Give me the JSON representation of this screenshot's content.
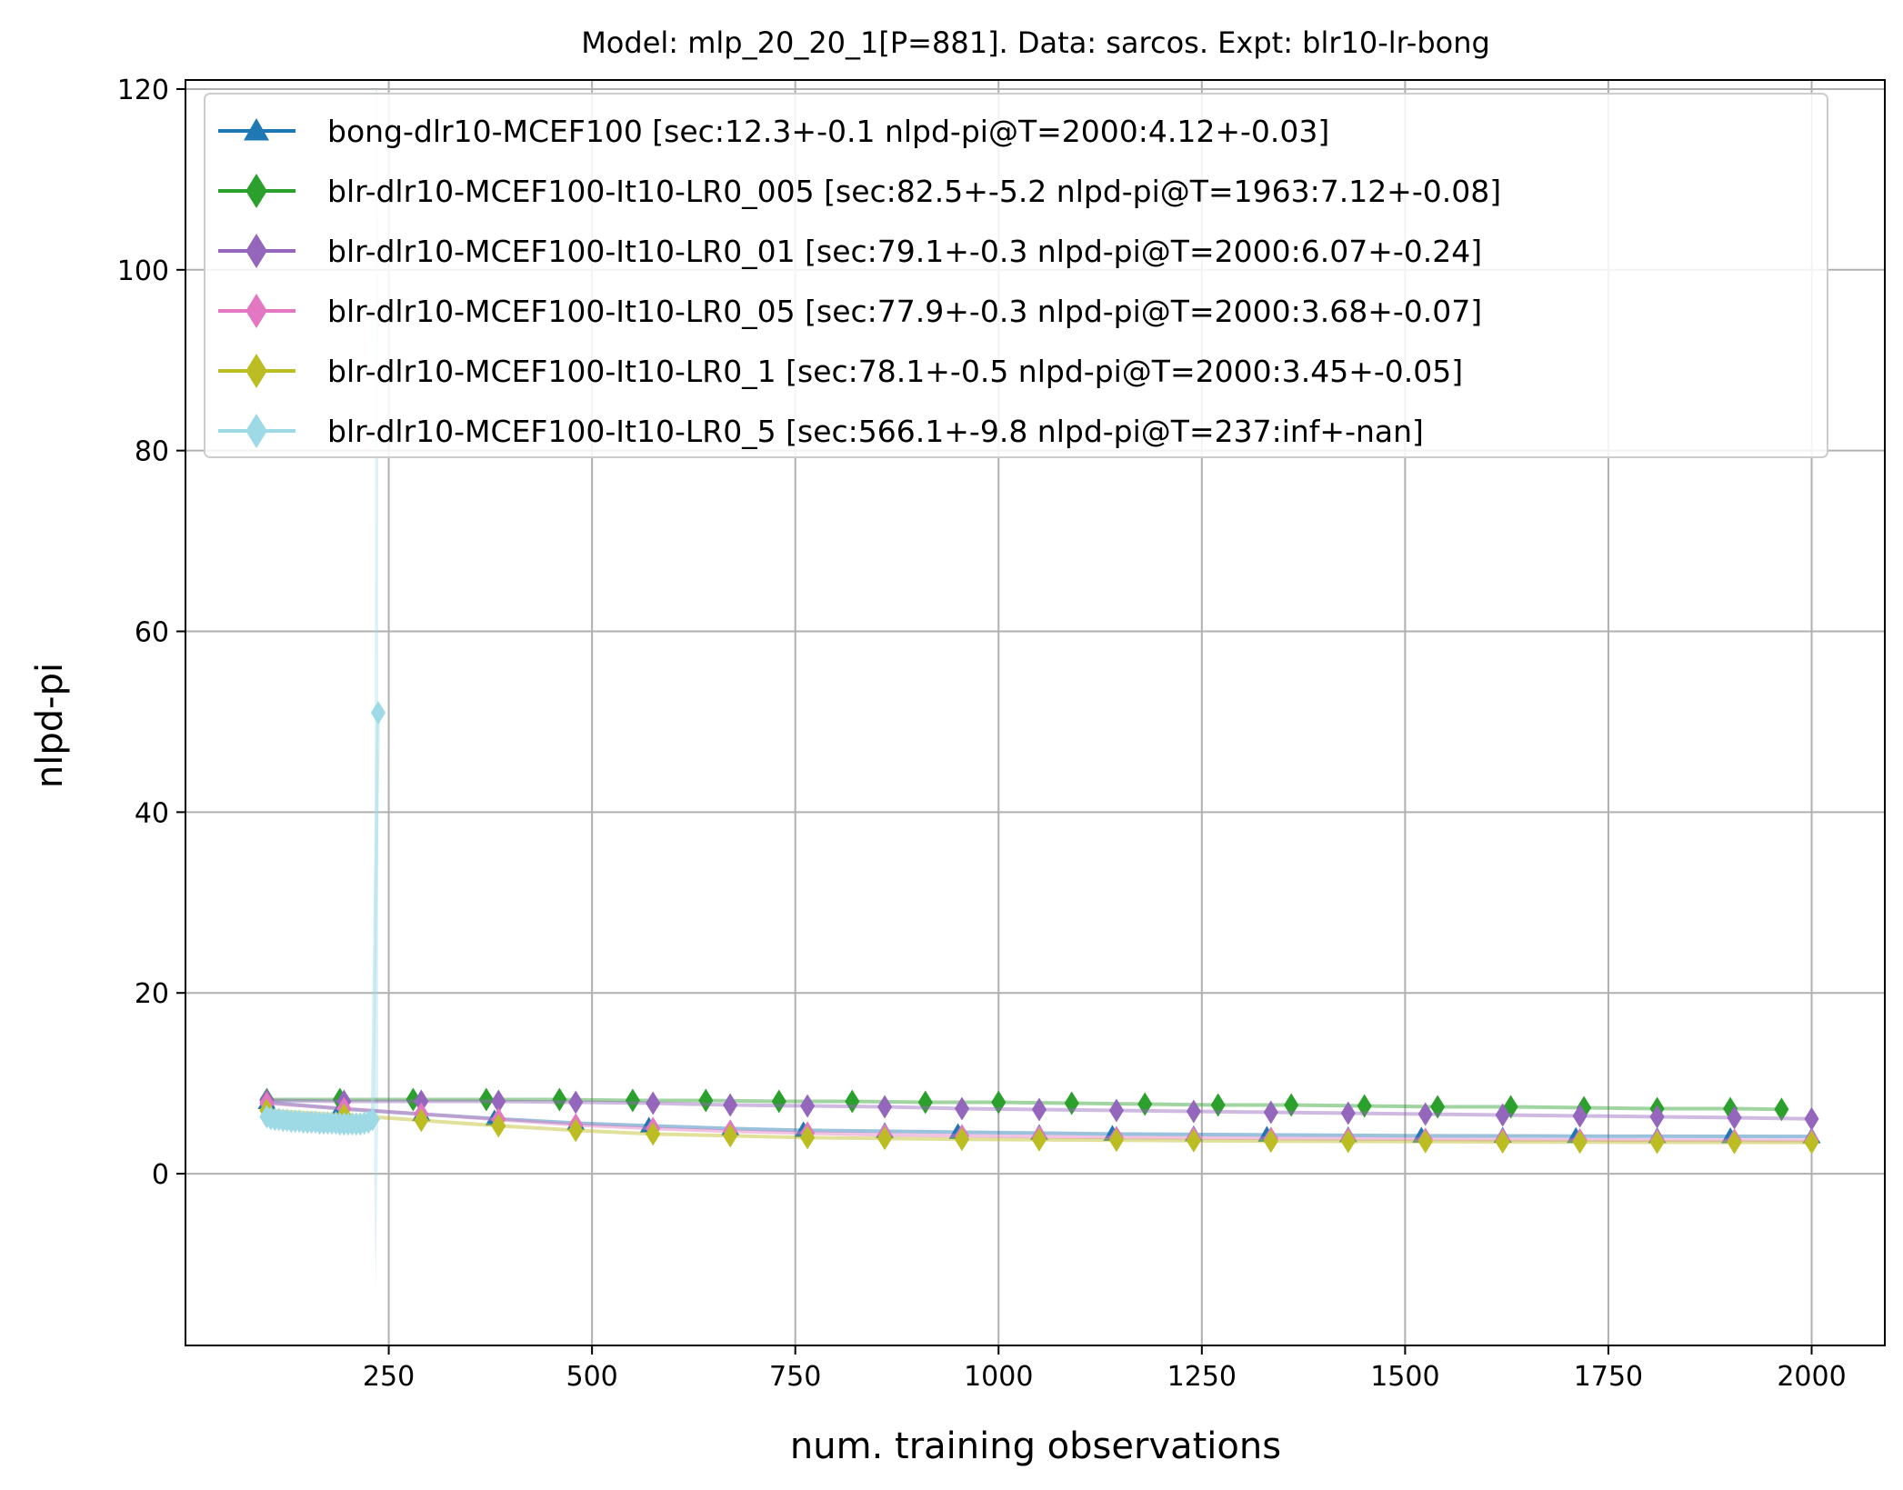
{
  "chart_data": {
    "type": "line",
    "title": "Model: mlp_20_20_1[P=881]. Data: sarcos. Expt: blr10-lr-bong",
    "xlabel": "num. training observations",
    "ylabel": "nlpd-pi",
    "xlim": [
      0,
      2090
    ],
    "ylim": [
      -19,
      121
    ],
    "xticks": [
      250,
      500,
      750,
      1000,
      1250,
      1500,
      1750,
      2000
    ],
    "xtick_labels": [
      "250",
      "500",
      "750",
      "1000",
      "1250",
      "1500",
      "1750",
      "2000"
    ],
    "yticks": [
      0,
      20,
      40,
      60,
      80,
      100,
      120
    ],
    "ytick_labels": [
      "0",
      "20",
      "40",
      "60",
      "80",
      "100",
      "120"
    ],
    "grid": true,
    "legend_position": "top",
    "series": [
      {
        "name": "bong-dlr10-MCEF100 [sec:12.3+-0.1 nlpd-pi@T=2000:4.12+-0.03]",
        "color": "#1f77b4",
        "marker": "triangle",
        "x": [
          100,
          190,
          290,
          380,
          480,
          570,
          670,
          760,
          860,
          950,
          1050,
          1140,
          1240,
          1330,
          1430,
          1520,
          1620,
          1710,
          1810,
          1900,
          2000
        ],
        "y": [
          7.9,
          7.2,
          6.6,
          6.1,
          5.6,
          5.3,
          5.0,
          4.8,
          4.7,
          4.6,
          4.5,
          4.4,
          4.35,
          4.3,
          4.25,
          4.2,
          4.18,
          4.16,
          4.14,
          4.13,
          4.12
        ]
      },
      {
        "name": "blr-dlr10-MCEF100-It10-LR0_005 [sec:82.5+-5.2 nlpd-pi@T=1963:7.12+-0.08]",
        "color": "#2ca02c",
        "marker": "diamond",
        "x": [
          100,
          190,
          280,
          370,
          460,
          550,
          640,
          730,
          820,
          910,
          1000,
          1090,
          1180,
          1270,
          1360,
          1450,
          1540,
          1630,
          1720,
          1810,
          1900,
          1963
        ],
        "y": [
          8.2,
          8.2,
          8.2,
          8.2,
          8.2,
          8.1,
          8.1,
          8.0,
          8.0,
          7.9,
          7.9,
          7.8,
          7.7,
          7.6,
          7.6,
          7.5,
          7.4,
          7.4,
          7.3,
          7.2,
          7.2,
          7.12
        ]
      },
      {
        "name": "blr-dlr10-MCEF100-It10-LR0_01 [sec:79.1+-0.3 nlpd-pi@T=2000:6.07+-0.24]",
        "color": "#9467bd",
        "marker": "diamond",
        "x": [
          100,
          195,
          290,
          385,
          480,
          575,
          670,
          765,
          860,
          955,
          1050,
          1145,
          1240,
          1335,
          1430,
          1525,
          1620,
          1715,
          1810,
          1905,
          2000
        ],
        "y": [
          8.1,
          8.0,
          8.0,
          8.0,
          7.9,
          7.8,
          7.6,
          7.5,
          7.4,
          7.2,
          7.1,
          7.0,
          6.9,
          6.8,
          6.7,
          6.6,
          6.5,
          6.4,
          6.3,
          6.2,
          6.07
        ]
      },
      {
        "name": "blr-dlr10-MCEF100-It10-LR0_05 [sec:77.9+-0.3 nlpd-pi@T=2000:3.68+-0.07]",
        "color": "#e377c2",
        "marker": "diamond",
        "x": [
          100,
          195,
          290,
          385,
          480,
          575,
          670,
          765,
          860,
          955,
          1050,
          1145,
          1240,
          1335,
          1430,
          1525,
          1620,
          1715,
          1810,
          1905,
          2000
        ],
        "y": [
          7.8,
          7.2,
          6.6,
          6.0,
          5.4,
          5.0,
          4.7,
          4.5,
          4.3,
          4.2,
          4.1,
          4.0,
          3.95,
          3.9,
          3.85,
          3.8,
          3.77,
          3.74,
          3.72,
          3.7,
          3.68
        ]
      },
      {
        "name": "blr-dlr10-MCEF100-It10-LR0_1 [sec:78.1+-0.5 nlpd-pi@T=2000:3.45+-0.05]",
        "color": "#bcbd22",
        "marker": "diamond",
        "x": [
          100,
          195,
          290,
          385,
          480,
          575,
          670,
          765,
          860,
          955,
          1050,
          1145,
          1240,
          1335,
          1430,
          1525,
          1620,
          1715,
          1810,
          1905,
          2000
        ],
        "y": [
          7.0,
          6.5,
          5.9,
          5.3,
          4.8,
          4.4,
          4.2,
          4.0,
          3.9,
          3.8,
          3.75,
          3.7,
          3.65,
          3.6,
          3.58,
          3.55,
          3.52,
          3.5,
          3.48,
          3.46,
          3.45
        ]
      },
      {
        "name": "blr-dlr10-MCEF100-It10-LR0_5 [sec:566.1+-9.8 nlpd-pi@T=237:inf+-nan]",
        "color": "#9edae5",
        "marker": "diamond",
        "x": [
          100,
          105,
          110,
          115,
          120,
          125,
          130,
          135,
          140,
          145,
          150,
          155,
          160,
          165,
          170,
          175,
          180,
          185,
          190,
          195,
          200,
          205,
          210,
          215,
          220,
          225,
          230,
          237
        ],
        "y": [
          6.3,
          6.1,
          6.0,
          6.0,
          5.9,
          5.9,
          5.8,
          5.8,
          5.8,
          5.7,
          5.7,
          5.7,
          5.7,
          5.6,
          5.6,
          5.6,
          5.6,
          5.6,
          5.5,
          5.5,
          5.5,
          5.5,
          5.5,
          5.5,
          5.6,
          5.7,
          6.0,
          51.0
        ],
        "band_x": [
          232,
          234,
          235,
          236,
          237
        ],
        "band_low": [
          0,
          -13,
          -5,
          0,
          5
        ],
        "band_high": [
          10,
          120,
          120,
          120,
          90
        ]
      }
    ]
  }
}
